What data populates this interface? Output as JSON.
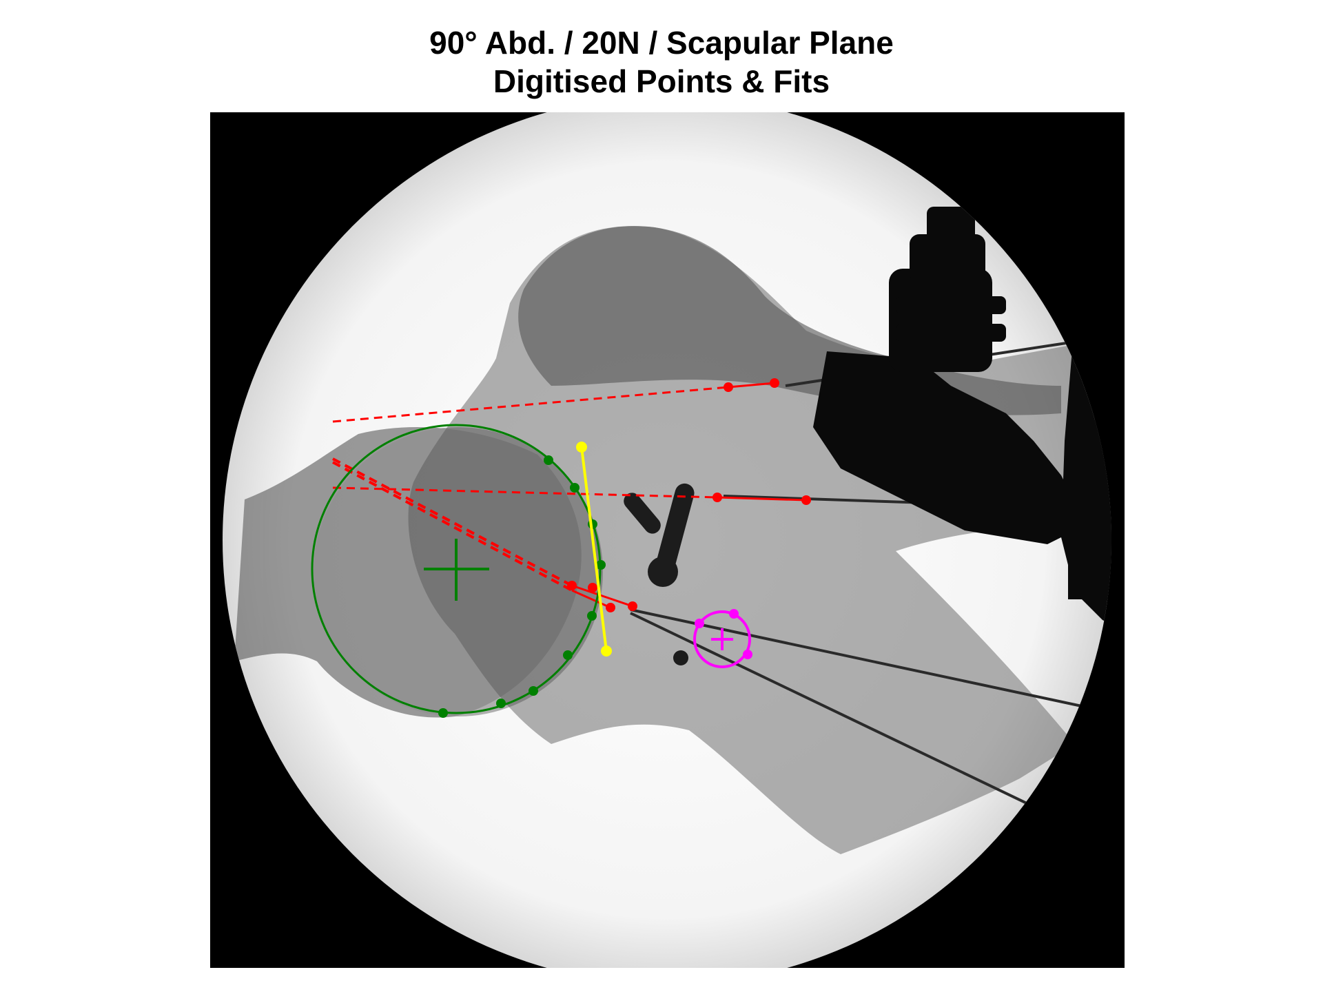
{
  "figure": {
    "title_line1": "90° Abd. / 20N / Scapular Plane",
    "title_line2": "Digitised Points & Fits"
  },
  "colors": {
    "humeral_head_fit": "#008000",
    "axis_lines": "#ff0000",
    "glenoid_line": "#ffff00",
    "marker_fit": "#ff00ff",
    "background_frame": "#000000"
  },
  "overlays": [
    {
      "name": "humeral-head-circle-fit",
      "color": "green",
      "points": 11
    },
    {
      "name": "glenoid-line",
      "color": "yellow",
      "points": 2
    },
    {
      "name": "axis-line-upper",
      "color": "red",
      "points": 2
    },
    {
      "name": "axis-line-middle",
      "color": "red",
      "points": 2
    },
    {
      "name": "axis-line-lower",
      "color": "red",
      "points": 4
    },
    {
      "name": "marker-circle-fit",
      "color": "magenta",
      "points": 4
    }
  ]
}
